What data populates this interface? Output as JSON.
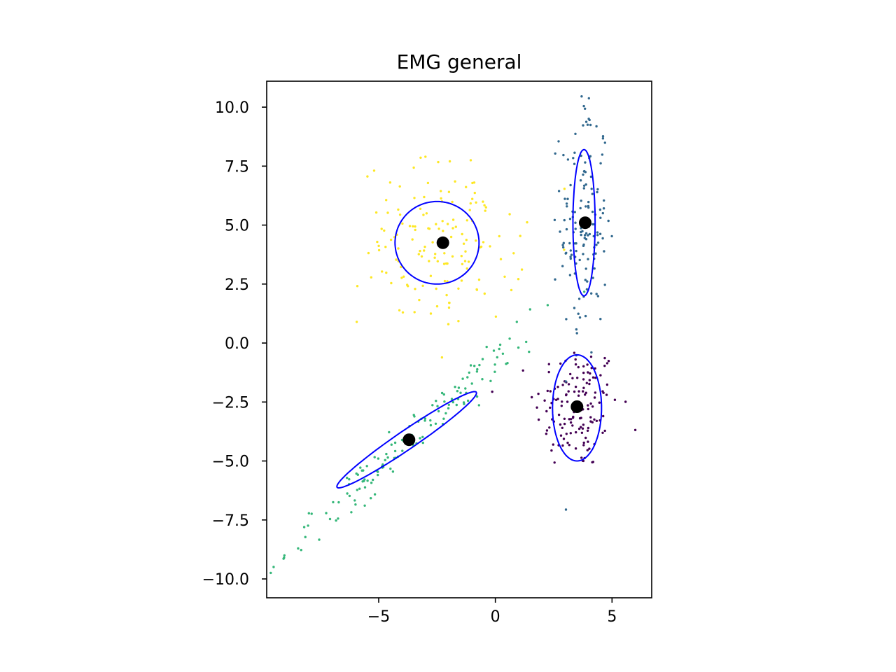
{
  "chart_data": {
    "type": "scatter",
    "title": "EMG general",
    "xlabel": "",
    "ylabel": "",
    "xlim": [
      -9.8,
      6.7
    ],
    "ylim": [
      -10.8,
      11.1
    ],
    "xticks": [
      -5,
      0,
      5
    ],
    "xtick_labels": [
      "−5",
      "0",
      "5"
    ],
    "yticks": [
      -10,
      -7.5,
      -5,
      -2.5,
      0,
      2.5,
      5,
      7.5,
      10
    ],
    "ytick_labels": [
      "−10.0",
      "−7.5",
      "−5.0",
      "−2.5",
      "0.0",
      "2.5",
      "5.0",
      "7.5",
      "10.0"
    ],
    "grid": false,
    "legend": false,
    "colors": {
      "cluster_0": "#440154",
      "cluster_1": "#31688e",
      "cluster_2": "#35b779",
      "cluster_3": "#fde725",
      "ellipse": "#0000ff",
      "center": "#000000"
    },
    "clusters": [
      {
        "color_key": "cluster_0",
        "center": [
          3.5,
          -2.7
        ],
        "spread": [
          0.9,
          1.35
        ],
        "rotation": 0,
        "n": 150
      },
      {
        "color_key": "cluster_1",
        "center": [
          3.8,
          5.1
        ],
        "spread": [
          0.5,
          2.9
        ],
        "rotation": 0,
        "n": 150
      },
      {
        "color_key": "cluster_2",
        "center": [
          -3.7,
          -4.1
        ],
        "spread": [
          3.5,
          0.32
        ],
        "rotation": 42,
        "n": 150
      },
      {
        "color_key": "cluster_3",
        "center": [
          -2.3,
          4.2
        ],
        "spread": [
          1.75,
          1.75
        ],
        "rotation": 0,
        "n": 150
      }
    ],
    "ellipses": [
      {
        "center": [
          3.5,
          -2.75
        ],
        "width": 2.1,
        "height": 4.5,
        "angle": 0
      },
      {
        "center": [
          3.8,
          5.1
        ],
        "width": 0.95,
        "height": 6.2,
        "angle": 0
      },
      {
        "center": [
          -3.8,
          -4.1
        ],
        "width": 7.2,
        "height": 0.8,
        "angle": 34
      },
      {
        "center": [
          -2.5,
          4.25
        ],
        "width": 3.6,
        "height": 3.5,
        "angle": 0
      }
    ],
    "centers": [
      [
        3.5,
        -2.7
      ],
      [
        3.85,
        5.1
      ],
      [
        -3.7,
        -4.1
      ],
      [
        -2.25,
        4.25
      ]
    ]
  }
}
